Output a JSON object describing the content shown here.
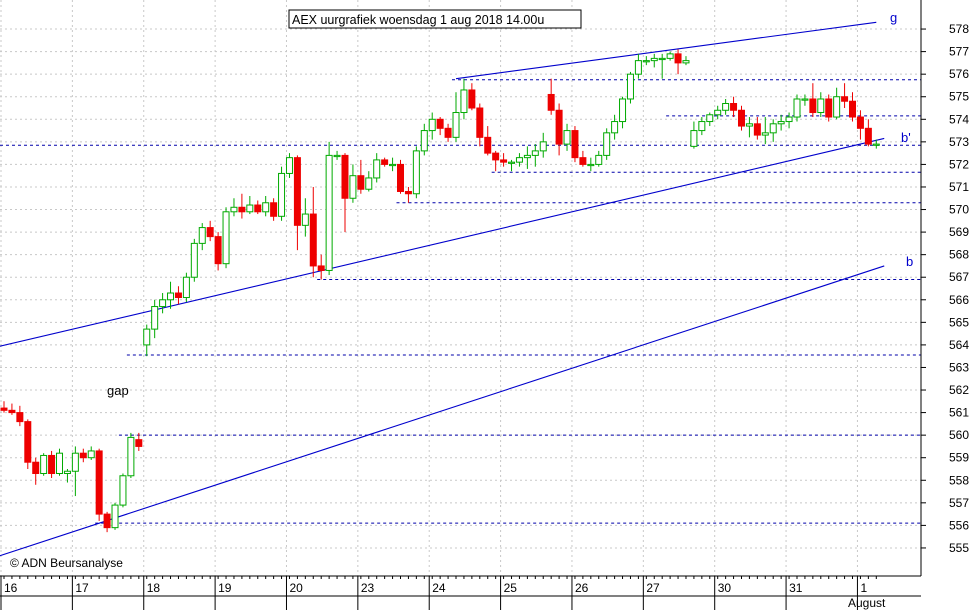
{
  "chart_data": {
    "type": "candlestick",
    "title": "AEX uurgrafiek woensdag 1 aug 2018 14.00u",
    "copyright": "© ADN Beursanalyse",
    "y_ticks": [
      555,
      556,
      557,
      558,
      559,
      560,
      561,
      562,
      563,
      564,
      565,
      566,
      567,
      568,
      569,
      570,
      571,
      572,
      573,
      574,
      575,
      576,
      577,
      578
    ],
    "ylim": [
      554.2,
      578.8
    ],
    "x_day_labels": [
      "16",
      "17",
      "18",
      "19",
      "20",
      "23",
      "24",
      "25",
      "26",
      "27",
      "30",
      "31",
      "1"
    ],
    "x_month_label": "August",
    "annotations": {
      "gap": "gap",
      "g": "g",
      "b_prime": "b'",
      "b": "b"
    },
    "colors": {
      "up": "#00aa00",
      "down": "#ee0000",
      "trendline": "#0000cc",
      "support": "#0000aa",
      "grid": "#c8c8c8"
    },
    "support_levels": [
      {
        "y": 575.75,
        "from": 57
      },
      {
        "y": 574.15,
        "from": 84
      },
      {
        "y": 572.85,
        "from": 0
      },
      {
        "y": 571.65,
        "from": 62
      },
      {
        "y": 570.3,
        "from": 50
      },
      {
        "y": 566.9,
        "from": 40
      },
      {
        "y": 563.55,
        "from": 16
      },
      {
        "y": 560.0,
        "from": 15
      },
      {
        "y": 556.1,
        "from": 12
      }
    ],
    "trendlines": [
      {
        "name": "g",
        "x1": 57,
        "y1": 575.8,
        "x2": 110,
        "y2": 578.3
      },
      {
        "name": "b'",
        "x1": -1,
        "y1": 563.9,
        "x2": 111,
        "y2": 573.15
      },
      {
        "name": "b",
        "x1": -1,
        "y1": 554.6,
        "x2": 111,
        "y2": 567.5
      }
    ],
    "candles": [
      [
        561.2,
        561.5,
        561.0,
        561.1
      ],
      [
        561.1,
        561.4,
        560.9,
        561.0
      ],
      [
        561.0,
        561.3,
        560.4,
        560.6
      ],
      [
        560.6,
        560.7,
        558.5,
        558.8
      ],
      [
        558.8,
        559.0,
        557.8,
        558.3
      ],
      [
        558.3,
        559.2,
        558.2,
        559.1
      ],
      [
        559.1,
        559.3,
        558.1,
        558.3
      ],
      [
        558.3,
        559.4,
        558.2,
        559.2
      ],
      [
        558.3,
        558.5,
        557.9,
        558.4
      ],
      [
        558.4,
        559.5,
        557.3,
        559.2
      ],
      [
        559.2,
        559.4,
        558.8,
        559.0
      ],
      [
        559.0,
        559.5,
        558.9,
        559.3
      ],
      [
        559.3,
        559.4,
        556.2,
        556.5
      ],
      [
        556.5,
        556.6,
        555.7,
        555.9
      ],
      [
        555.9,
        557.0,
        555.8,
        556.9
      ],
      [
        556.9,
        558.3,
        556.8,
        558.2
      ],
      [
        558.2,
        560.1,
        558.1,
        559.9
      ],
      [
        559.8,
        560.1,
        559.3,
        559.5
      ],
      [
        564.0,
        564.9,
        563.5,
        564.7
      ],
      [
        564.7,
        566.0,
        564.3,
        565.7
      ],
      [
        565.7,
        566.3,
        565.4,
        566.0
      ],
      [
        566.0,
        566.8,
        565.6,
        566.3
      ],
      [
        566.3,
        566.6,
        565.8,
        566.1
      ],
      [
        566.1,
        567.2,
        565.9,
        567.0
      ],
      [
        567.0,
        568.7,
        566.8,
        568.5
      ],
      [
        568.5,
        569.4,
        568.2,
        569.2
      ],
      [
        569.2,
        569.5,
        568.6,
        568.8
      ],
      [
        568.8,
        569.0,
        567.3,
        567.6
      ],
      [
        567.6,
        570.1,
        567.4,
        569.9
      ],
      [
        569.9,
        570.5,
        569.7,
        570.1
      ],
      [
        570.1,
        570.7,
        569.6,
        569.9
      ],
      [
        569.9,
        570.6,
        569.8,
        570.2
      ],
      [
        570.2,
        570.4,
        569.8,
        569.9
      ],
      [
        569.9,
        570.6,
        569.7,
        570.3
      ],
      [
        570.3,
        570.5,
        569.5,
        569.7
      ],
      [
        569.7,
        571.9,
        569.5,
        571.6
      ],
      [
        571.6,
        572.5,
        571.4,
        572.3
      ],
      [
        572.3,
        572.4,
        568.2,
        569.3
      ],
      [
        569.3,
        570.5,
        568.8,
        569.8
      ],
      [
        569.8,
        571.0,
        567.0,
        567.5
      ],
      [
        567.5,
        568.0,
        566.9,
        567.3
      ],
      [
        567.3,
        573.0,
        567.1,
        572.4
      ],
      [
        572.4,
        572.6,
        572.2,
        572.4
      ],
      [
        572.4,
        572.5,
        569.0,
        570.5
      ],
      [
        570.5,
        572.0,
        570.3,
        571.5
      ],
      [
        571.5,
        572.2,
        570.7,
        570.9
      ],
      [
        570.9,
        571.7,
        570.8,
        571.4
      ],
      [
        571.4,
        572.5,
        571.2,
        572.2
      ],
      [
        572.2,
        572.3,
        571.9,
        572.0
      ],
      [
        572.0,
        572.3,
        571.7,
        572.0
      ],
      [
        572.0,
        572.2,
        570.7,
        570.8
      ],
      [
        570.8,
        571.0,
        570.3,
        570.7
      ],
      [
        570.7,
        572.8,
        570.5,
        572.6
      ],
      [
        572.6,
        573.8,
        572.4,
        573.5
      ],
      [
        573.5,
        574.3,
        573.1,
        574.0
      ],
      [
        574.0,
        574.1,
        573.3,
        573.6
      ],
      [
        573.6,
        573.8,
        573.0,
        573.2
      ],
      [
        573.2,
        575.2,
        573.0,
        574.3
      ],
      [
        574.3,
        575.8,
        574.0,
        575.3
      ],
      [
        575.3,
        575.6,
        574.4,
        574.5
      ],
      [
        574.5,
        574.7,
        572.8,
        573.2
      ],
      [
        573.2,
        573.7,
        572.4,
        572.5
      ],
      [
        572.5,
        572.6,
        571.7,
        572.2
      ],
      [
        572.2,
        572.5,
        571.9,
        572.1
      ],
      [
        572.1,
        572.2,
        571.7,
        572.1
      ],
      [
        572.1,
        572.5,
        571.9,
        572.3
      ],
      [
        572.3,
        572.8,
        571.8,
        572.4
      ],
      [
        572.4,
        572.9,
        571.9,
        572.6
      ],
      [
        572.6,
        573.4,
        572.3,
        573.0
      ],
      [
        575.1,
        575.8,
        574.2,
        574.4
      ],
      [
        574.4,
        574.7,
        572.4,
        572.9
      ],
      [
        572.9,
        573.8,
        572.6,
        573.5
      ],
      [
        573.5,
        573.7,
        572.1,
        572.3
      ],
      [
        572.3,
        572.6,
        571.9,
        572.0
      ],
      [
        572.0,
        572.3,
        571.7,
        572.0
      ],
      [
        572.0,
        572.6,
        571.9,
        572.4
      ],
      [
        572.4,
        573.6,
        572.2,
        573.4
      ],
      [
        573.4,
        574.2,
        573.1,
        573.9
      ],
      [
        573.9,
        575.0,
        573.6,
        574.9
      ],
      [
        574.9,
        576.1,
        574.7,
        576.0
      ],
      [
        576.0,
        576.9,
        575.8,
        576.6
      ],
      [
        576.6,
        576.8,
        576.4,
        576.6
      ],
      [
        576.6,
        576.9,
        576.3,
        576.7
      ],
      [
        576.7,
        576.9,
        575.8,
        576.7
      ],
      [
        576.7,
        577.0,
        576.6,
        576.9
      ],
      [
        576.9,
        577.1,
        576.0,
        576.5
      ],
      [
        576.5,
        576.8,
        576.4,
        576.6
      ],
      [
        572.8,
        573.9,
        572.7,
        573.5
      ],
      [
        573.5,
        574.1,
        573.3,
        573.9
      ],
      [
        573.9,
        574.3,
        573.7,
        574.2
      ],
      [
        574.2,
        574.6,
        574.0,
        574.4
      ],
      [
        574.4,
        574.9,
        574.2,
        574.7
      ],
      [
        574.7,
        575.0,
        574.1,
        574.4
      ],
      [
        574.4,
        574.6,
        573.5,
        573.7
      ],
      [
        573.7,
        574.1,
        573.2,
        573.8
      ],
      [
        573.8,
        574.1,
        573.1,
        573.3
      ],
      [
        573.3,
        574.1,
        572.9,
        573.4
      ],
      [
        573.4,
        574.0,
        573.0,
        573.8
      ],
      [
        573.8,
        574.2,
        573.5,
        573.9
      ],
      [
        573.9,
        574.3,
        573.6,
        574.1
      ],
      [
        574.1,
        575.1,
        573.9,
        574.9
      ],
      [
        574.9,
        575.1,
        574.6,
        574.9
      ],
      [
        574.9,
        575.6,
        574.1,
        574.3
      ],
      [
        574.3,
        575.2,
        574.1,
        574.9
      ],
      [
        574.9,
        575.1,
        573.9,
        574.1
      ],
      [
        574.1,
        575.4,
        574.0,
        575.0
      ],
      [
        575.0,
        575.6,
        574.5,
        574.8
      ],
      [
        574.8,
        575.2,
        573.9,
        574.1
      ],
      [
        574.1,
        574.4,
        573.1,
        573.6
      ],
      [
        573.6,
        574.0,
        572.8,
        572.9
      ],
      [
        572.9,
        573.1,
        572.7,
        572.9
      ]
    ]
  }
}
